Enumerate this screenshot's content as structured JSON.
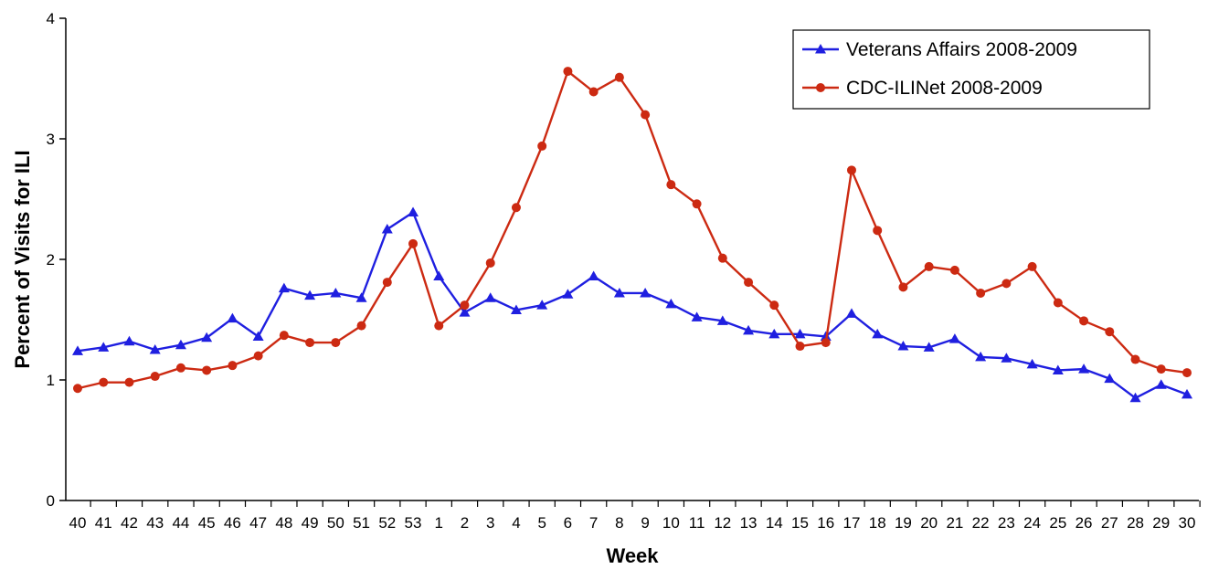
{
  "chart_data": {
    "type": "line",
    "xlabel": "Week",
    "ylabel": "Percent of Visits for ILI",
    "ylim": [
      0,
      4
    ],
    "yticks": [
      "0",
      "1",
      "2",
      "3",
      "4"
    ],
    "grid": false,
    "legend_position": "top-right",
    "categories": [
      "40",
      "41",
      "42",
      "43",
      "44",
      "45",
      "46",
      "47",
      "48",
      "49",
      "50",
      "51",
      "52",
      "53",
      "1",
      "2",
      "3",
      "4",
      "5",
      "6",
      "7",
      "8",
      "9",
      "10",
      "11",
      "12",
      "13",
      "14",
      "15",
      "16",
      "17",
      "18",
      "19",
      "20",
      "21",
      "22",
      "23",
      "24",
      "25",
      "26",
      "27",
      "28",
      "29",
      "30"
    ],
    "series": [
      {
        "name": "Veterans Affairs 2008-2009",
        "color": "#1f1fe0",
        "marker": "triangle",
        "values": [
          1.24,
          1.27,
          1.32,
          1.25,
          1.29,
          1.35,
          1.51,
          1.36,
          1.76,
          1.7,
          1.72,
          1.68,
          2.25,
          2.39,
          1.86,
          1.56,
          1.68,
          1.58,
          1.62,
          1.71,
          1.86,
          1.72,
          1.72,
          1.63,
          1.52,
          1.49,
          1.41,
          1.38,
          1.38,
          1.36,
          1.55,
          1.38,
          1.28,
          1.27,
          1.34,
          1.19,
          1.18,
          1.13,
          1.08,
          1.09,
          1.01,
          0.85,
          0.96,
          0.88
        ]
      },
      {
        "name": "CDC-ILINet 2008-2009",
        "color": "#cc2a12",
        "marker": "circle",
        "values": [
          0.93,
          0.98,
          0.98,
          1.03,
          1.1,
          1.08,
          1.12,
          1.2,
          1.37,
          1.31,
          1.31,
          1.45,
          1.81,
          2.13,
          1.45,
          1.62,
          1.97,
          2.43,
          2.94,
          3.56,
          3.39,
          3.51,
          3.2,
          2.62,
          2.46,
          2.01,
          1.81,
          1.62,
          1.28,
          1.31,
          2.74,
          2.24,
          1.77,
          1.94,
          1.91,
          1.72,
          1.8,
          1.94,
          1.64,
          1.49,
          1.4,
          1.17,
          1.09,
          1.06
        ]
      }
    ]
  }
}
